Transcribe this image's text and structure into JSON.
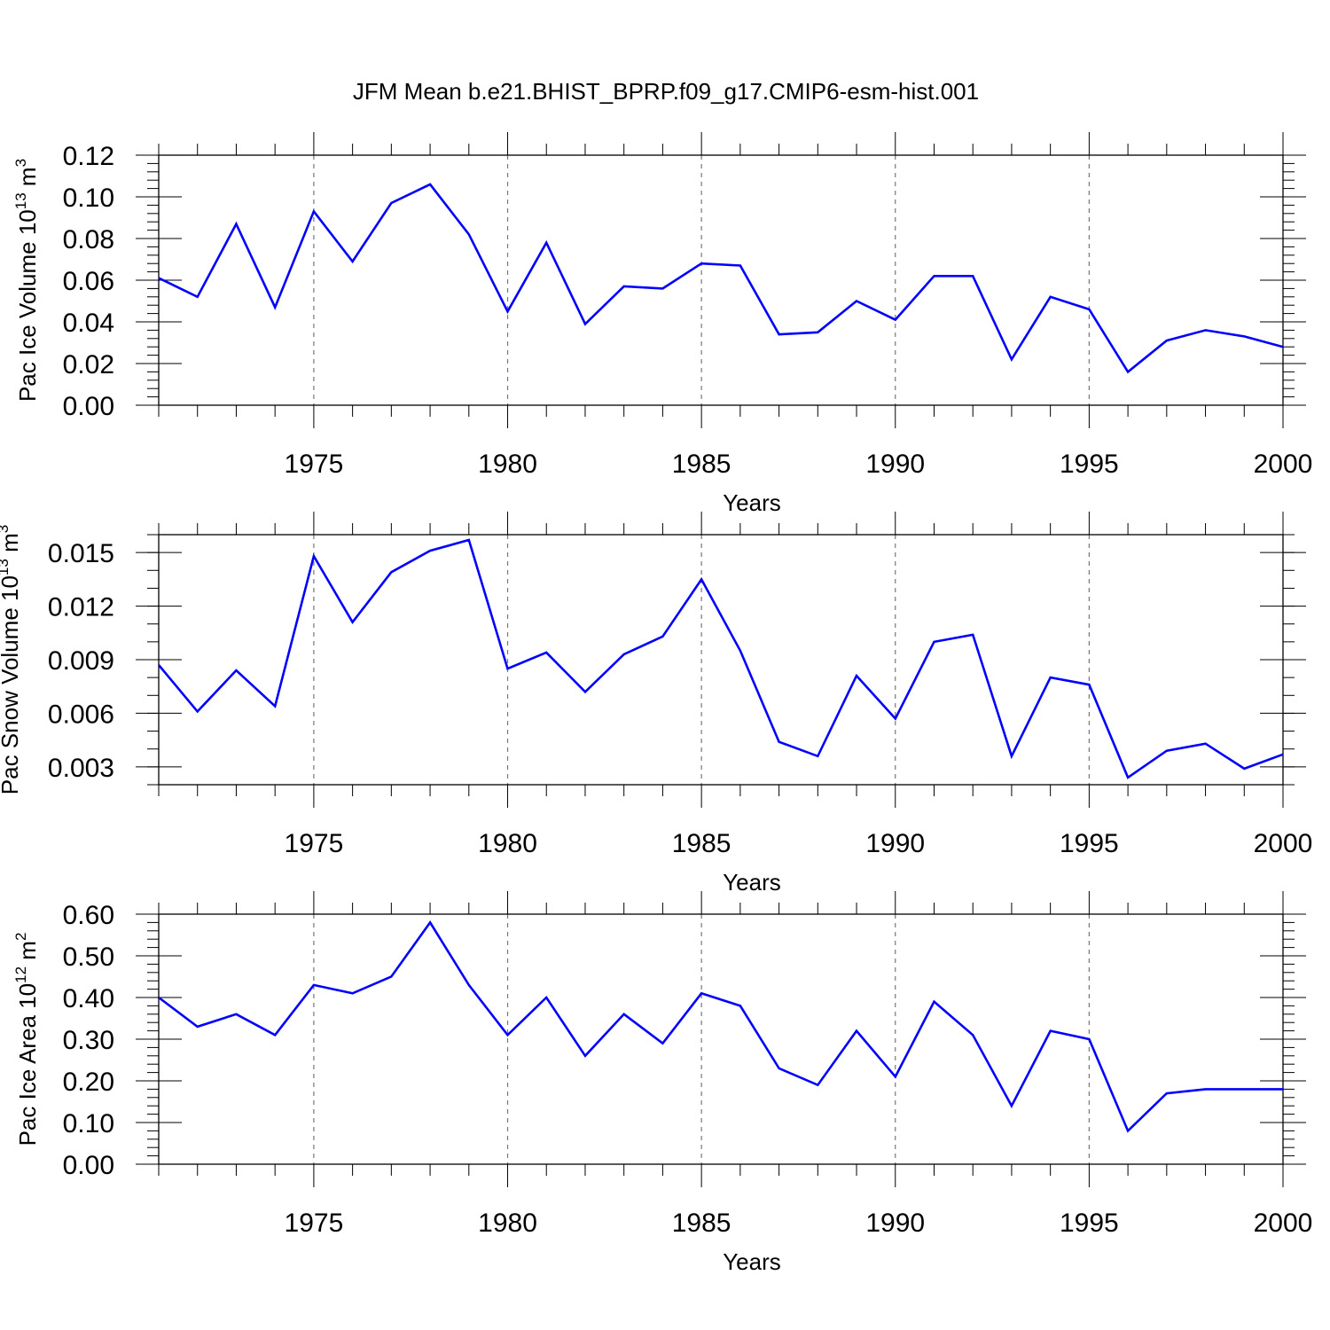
{
  "title": "JFM Mean b.e21.BHIST_BPRP.f09_g17.CMIP6-esm-hist.001",
  "colors": {
    "line": "#0000ff",
    "axis": "#000000",
    "grid": "#777777"
  },
  "chart_data": [
    {
      "type": "line",
      "name": "panel-ice-volume",
      "ylabel": "Pac Ice Volume",
      "ylabel_unit": {
        "base": "10",
        "exp": "13",
        "unit": "m",
        "unit_exp": "3"
      },
      "xlabel": "Years",
      "xlim": [
        1971,
        2000
      ],
      "ylim": [
        0,
        0.12
      ],
      "x_ticks": [
        1975,
        1980,
        1985,
        1990,
        1995,
        2000
      ],
      "y_ticks": [
        0,
        0.02,
        0.04,
        0.06,
        0.08,
        0.1,
        0.12
      ],
      "y_tick_labels": [
        "0.00",
        "0.02",
        "0.04",
        "0.06",
        "0.08",
        "0.10",
        "0.12"
      ],
      "y_minor_step": 0.004,
      "x": [
        1971,
        1972,
        1973,
        1974,
        1975,
        1976,
        1977,
        1978,
        1979,
        1980,
        1981,
        1982,
        1983,
        1984,
        1985,
        1986,
        1987,
        1988,
        1989,
        1990,
        1991,
        1992,
        1993,
        1994,
        1995,
        1996,
        1997,
        1998,
        1999,
        2000
      ],
      "values": [
        0.061,
        0.052,
        0.087,
        0.047,
        0.093,
        0.069,
        0.097,
        0.106,
        0.082,
        0.045,
        0.078,
        0.039,
        0.057,
        0.056,
        0.068,
        0.067,
        0.034,
        0.035,
        0.05,
        0.041,
        0.062,
        0.062,
        0.022,
        0.052,
        0.046,
        0.016,
        0.031,
        0.036,
        0.033,
        0.028
      ],
      "grid": "vertical dashed at major x ticks"
    },
    {
      "type": "line",
      "name": "panel-snow-volume",
      "ylabel": "Pac Snow Volume",
      "ylabel_unit": {
        "base": "10",
        "exp": "13",
        "unit": "m",
        "unit_exp": "3"
      },
      "xlabel": "Years",
      "xlim": [
        1971,
        2000
      ],
      "ylim": [
        0.002,
        0.016
      ],
      "x_ticks": [
        1975,
        1980,
        1985,
        1990,
        1995,
        2000
      ],
      "y_ticks": [
        0.003,
        0.006,
        0.009,
        0.012,
        0.015
      ],
      "y_tick_labels": [
        "0.003",
        "0.006",
        "0.009",
        "0.012",
        "0.015"
      ],
      "y_minor_step": 0.001,
      "x": [
        1971,
        1972,
        1973,
        1974,
        1975,
        1976,
        1977,
        1978,
        1979,
        1980,
        1981,
        1982,
        1983,
        1984,
        1985,
        1986,
        1987,
        1988,
        1989,
        1990,
        1991,
        1992,
        1993,
        1994,
        1995,
        1996,
        1997,
        1998,
        1999,
        2000
      ],
      "values": [
        0.0087,
        0.0061,
        0.0084,
        0.0064,
        0.0148,
        0.0111,
        0.0139,
        0.0151,
        0.0157,
        0.0085,
        0.0094,
        0.0072,
        0.0093,
        0.0103,
        0.0135,
        0.0095,
        0.0044,
        0.0036,
        0.0081,
        0.0057,
        0.01,
        0.0104,
        0.0036,
        0.008,
        0.0076,
        0.0024,
        0.0039,
        0.0043,
        0.0029,
        0.0037
      ],
      "grid": "vertical dashed at major x ticks"
    },
    {
      "type": "line",
      "name": "panel-ice-area",
      "ylabel": "Pac Ice Area",
      "ylabel_unit": {
        "base": "10",
        "exp": "12",
        "unit": "m",
        "unit_exp": "2"
      },
      "xlabel": "Years",
      "xlim": [
        1971,
        2000
      ],
      "ylim": [
        0,
        0.6
      ],
      "x_ticks": [
        1975,
        1980,
        1985,
        1990,
        1995,
        2000
      ],
      "y_ticks": [
        0,
        0.1,
        0.2,
        0.3,
        0.4,
        0.5,
        0.6
      ],
      "y_tick_labels": [
        "0.00",
        "0.10",
        "0.20",
        "0.30",
        "0.40",
        "0.50",
        "0.60"
      ],
      "y_minor_step": 0.02,
      "x": [
        1971,
        1972,
        1973,
        1974,
        1975,
        1976,
        1977,
        1978,
        1979,
        1980,
        1981,
        1982,
        1983,
        1984,
        1985,
        1986,
        1987,
        1988,
        1989,
        1990,
        1991,
        1992,
        1993,
        1994,
        1995,
        1996,
        1997,
        1998,
        1999,
        2000
      ],
      "values": [
        0.4,
        0.33,
        0.36,
        0.31,
        0.43,
        0.41,
        0.45,
        0.58,
        0.43,
        0.31,
        0.4,
        0.26,
        0.36,
        0.29,
        0.41,
        0.38,
        0.23,
        0.19,
        0.32,
        0.21,
        0.39,
        0.31,
        0.14,
        0.32,
        0.3,
        0.08,
        0.17,
        0.18,
        0.18,
        0.18
      ],
      "grid": "vertical dashed at major x ticks"
    }
  ]
}
